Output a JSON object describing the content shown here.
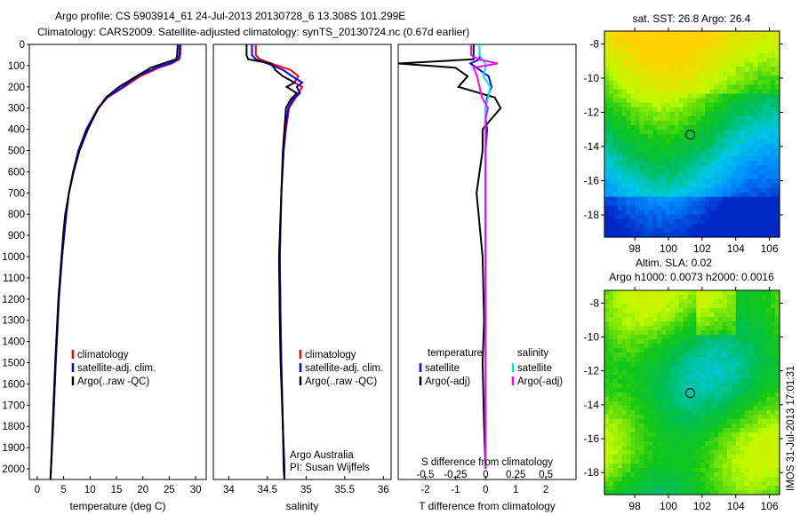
{
  "title": {
    "line1": "Argo profile: CS 5903914_61 24-Jul-2013 20130728_6 13.308S 101.299E",
    "line2": "Climatology: CARS2009. Satellite-adjusted climatology: synTS_20130724.nc (0.67d earlier)"
  },
  "colors": {
    "climatology": "#ff0000",
    "satellite": "#0000ff",
    "argo": "#000000",
    "sal_satellite": "#00e5ee",
    "sal_argo": "#ff00ff"
  },
  "chart_data": [
    {
      "type": "line",
      "id": "temperature",
      "xlabel": "temperature (deg C)",
      "ylabel": "",
      "xlim": [
        -1.5,
        32
      ],
      "ylim": [
        2050,
        0
      ],
      "xticks": [
        "0",
        "5",
        "10",
        "15",
        "20",
        "25",
        "30"
      ],
      "xtick_values": [
        0,
        5,
        10,
        15,
        20,
        25,
        30
      ],
      "yticks": [
        "0",
        "100",
        "200",
        "300",
        "400",
        "500",
        "600",
        "700",
        "800",
        "900",
        "1000",
        "1100",
        "1200",
        "1300",
        "1400",
        "1500",
        "1600",
        "1700",
        "1800",
        "1900",
        "2000"
      ],
      "depth": [
        0,
        50,
        70,
        90,
        110,
        150,
        200,
        250,
        300,
        400,
        500,
        600,
        700,
        800,
        900,
        1000,
        1200,
        1500,
        1800,
        2000,
        2050
      ],
      "series": [
        {
          "name": "climatology",
          "color": "#ff0000",
          "values": [
            27.2,
            27.1,
            26.9,
            25.5,
            23,
            19.5,
            16.5,
            13.3,
            11.6,
            9.4,
            7.8,
            6.8,
            6.0,
            5.5,
            5.1,
            4.7,
            4.1,
            3.5,
            3.0,
            2.6,
            2.5
          ]
        },
        {
          "name": "satellite-adj. clim.",
          "color": "#0000ff",
          "values": [
            27.0,
            26.9,
            26.7,
            25,
            22.5,
            19,
            16.2,
            13.2,
            11.5,
            9.3,
            7.8,
            6.8,
            6.0,
            5.5,
            5.1,
            4.7,
            4.1,
            3.5,
            3.0,
            2.6,
            2.5
          ]
        },
        {
          "name": "Argo(..raw -QC)",
          "color": "#000000",
          "values": [
            26.6,
            26.5,
            26.3,
            23.8,
            21.5,
            18.8,
            15.5,
            13.0,
            11.6,
            9.6,
            8.0,
            6.9,
            6.0,
            5.3,
            4.9,
            4.6,
            4.0,
            3.4,
            2.9,
            2.6,
            2.5
          ]
        }
      ],
      "legend": [
        "climatology",
        "satellite-adj. clim.",
        "Argo(..raw -QC)"
      ],
      "legend_placement": "bottom-center"
    },
    {
      "type": "line",
      "id": "salinity",
      "xlabel": "salinity",
      "xlim": [
        33.8,
        36.1
      ],
      "ylim": [
        2050,
        0
      ],
      "xticks": [
        "34",
        "34.5",
        "35",
        "35.5",
        "36"
      ],
      "xtick_values": [
        34,
        34.5,
        35,
        35.5,
        36
      ],
      "depth": [
        0,
        50,
        70,
        90,
        120,
        150,
        180,
        200,
        230,
        260,
        300,
        400,
        500,
        700,
        1000,
        1300,
        1500,
        1800,
        2000,
        2050
      ],
      "series": [
        {
          "name": "climatology",
          "color": "#ff0000",
          "values": [
            34.35,
            34.35,
            34.4,
            34.55,
            34.8,
            34.9,
            34.85,
            34.95,
            34.9,
            34.85,
            34.78,
            34.74,
            34.71,
            34.68,
            34.66,
            34.67,
            34.68,
            34.7,
            34.72,
            34.72
          ]
        },
        {
          "name": "satellite-adj. clim.",
          "color": "#0000ff",
          "values": [
            34.3,
            34.3,
            34.35,
            34.5,
            34.7,
            34.82,
            34.95,
            34.88,
            34.92,
            34.83,
            34.77,
            34.73,
            34.71,
            34.68,
            34.66,
            34.67,
            34.68,
            34.7,
            34.72,
            34.72
          ]
        },
        {
          "name": "Argo(..raw -QC)",
          "color": "#000000",
          "values": [
            34.23,
            34.23,
            34.25,
            34.55,
            34.6,
            34.7,
            34.85,
            34.75,
            34.88,
            34.8,
            34.74,
            34.72,
            34.7,
            34.68,
            34.65,
            34.66,
            34.67,
            34.7,
            34.71,
            34.72
          ]
        }
      ],
      "legend": [
        "climatology",
        "satellite-adj. clim.",
        "Argo(..raw -QC)"
      ],
      "legend_placement": "bottom-center",
      "annotation": [
        "Argo Australia",
        "PI: Susan Wijffels"
      ]
    },
    {
      "type": "line",
      "id": "differences",
      "xlabel": "T difference from climatology",
      "xlabel2": "S difference from climatology",
      "xlim": [
        -2.9,
        3
      ],
      "ylim": [
        2050,
        0
      ],
      "xticks": [
        "-2",
        "-1",
        "0",
        "1",
        "2"
      ],
      "xtick_values": [
        -2,
        -1,
        0,
        1,
        2
      ],
      "xticks2": [
        "-0.5",
        "-0.25",
        "0",
        "0.25",
        "0.5"
      ],
      "xtick2_values": [
        -0.5,
        -0.25,
        0,
        0.25,
        0.5
      ],
      "depth": [
        0,
        50,
        70,
        90,
        110,
        150,
        200,
        250,
        300,
        350,
        400,
        500,
        700,
        1000,
        1300,
        1500,
        1800,
        2000
      ],
      "series": [
        {
          "name": "temperature satellite",
          "color": "#0000ff",
          "scale": "T",
          "values": [
            -0.2,
            -0.2,
            -0.2,
            -0.5,
            -0.3,
            0.1,
            0.2,
            0.05,
            0.0,
            0.0,
            0.05,
            0.0,
            0.0,
            0.0,
            0.0,
            0.0,
            0.0,
            0.0
          ]
        },
        {
          "name": "temperature Argo(-adj)",
          "color": "#000000",
          "scale": "T",
          "values": [
            -0.4,
            -0.4,
            -0.4,
            -2.9,
            -1.0,
            -0.6,
            -0.9,
            0.3,
            0.5,
            0.2,
            -0.1,
            -0.1,
            -0.3,
            -0.1,
            -0.05,
            -0.1,
            -0.05,
            0.0
          ]
        },
        {
          "name": "salinity satellite",
          "color": "#00e5ee",
          "scale": "S",
          "values": [
            -0.05,
            -0.05,
            -0.03,
            0.0,
            0.0,
            -0.02,
            0.04,
            0.02,
            0.0,
            0.0,
            0.0,
            0.0,
            0.0,
            0.0,
            0.0,
            0.0,
            0.0,
            0.0
          ]
        },
        {
          "name": "salinity Argo(-adj)",
          "color": "#ff00ff",
          "scale": "S",
          "values": [
            -0.12,
            -0.12,
            -0.06,
            0.1,
            -0.1,
            -0.07,
            -0.05,
            -0.03,
            0.02,
            0.0,
            0.0,
            0.0,
            0.0,
            0.0,
            0.0,
            0.0,
            0.0,
            0.0
          ]
        }
      ],
      "legend_headers": [
        "temperature",
        "salinity"
      ],
      "legend": [
        "satellite",
        "Argo(-adj)",
        "satellite",
        "Argo(-adj)"
      ],
      "legend_placement": "bottom-center"
    },
    {
      "type": "heatmap",
      "id": "sst-map",
      "title": "sat. SST: 26.8 Argo: 26.4",
      "xlim": [
        96.2,
        106.6
      ],
      "ylim": [
        -19.3,
        -7.25
      ],
      "xticks": [
        "98",
        "100",
        "102",
        "104",
        "106"
      ],
      "xtick_values": [
        98,
        100,
        102,
        104,
        106
      ],
      "yticks": [
        "-8",
        "-10",
        "-12",
        "-14",
        "-16",
        "-18"
      ],
      "ytick_values": [
        -8,
        -10,
        -12,
        -14,
        -16,
        -18
      ],
      "marker": [
        101.299,
        -13.308
      ]
    },
    {
      "type": "heatmap",
      "id": "sla-map",
      "title": "Altim. SLA: 0.02",
      "subtitle": "Argo h1000: 0.0073 h2000: 0.0016",
      "xlim": [
        96.2,
        106.6
      ],
      "ylim": [
        -19.3,
        -7.25
      ],
      "xticks": [
        "98",
        "100",
        "102",
        "104",
        "106"
      ],
      "xtick_values": [
        98,
        100,
        102,
        104,
        106
      ],
      "yticks": [
        "-8",
        "-10",
        "-12",
        "-14",
        "-16",
        "-18"
      ],
      "ytick_values": [
        -8,
        -10,
        -12,
        -14,
        -16,
        -18
      ],
      "marker": [
        101.299,
        -13.308
      ]
    }
  ],
  "footer": "IMOS 31-Jul-2013 17:01:31"
}
